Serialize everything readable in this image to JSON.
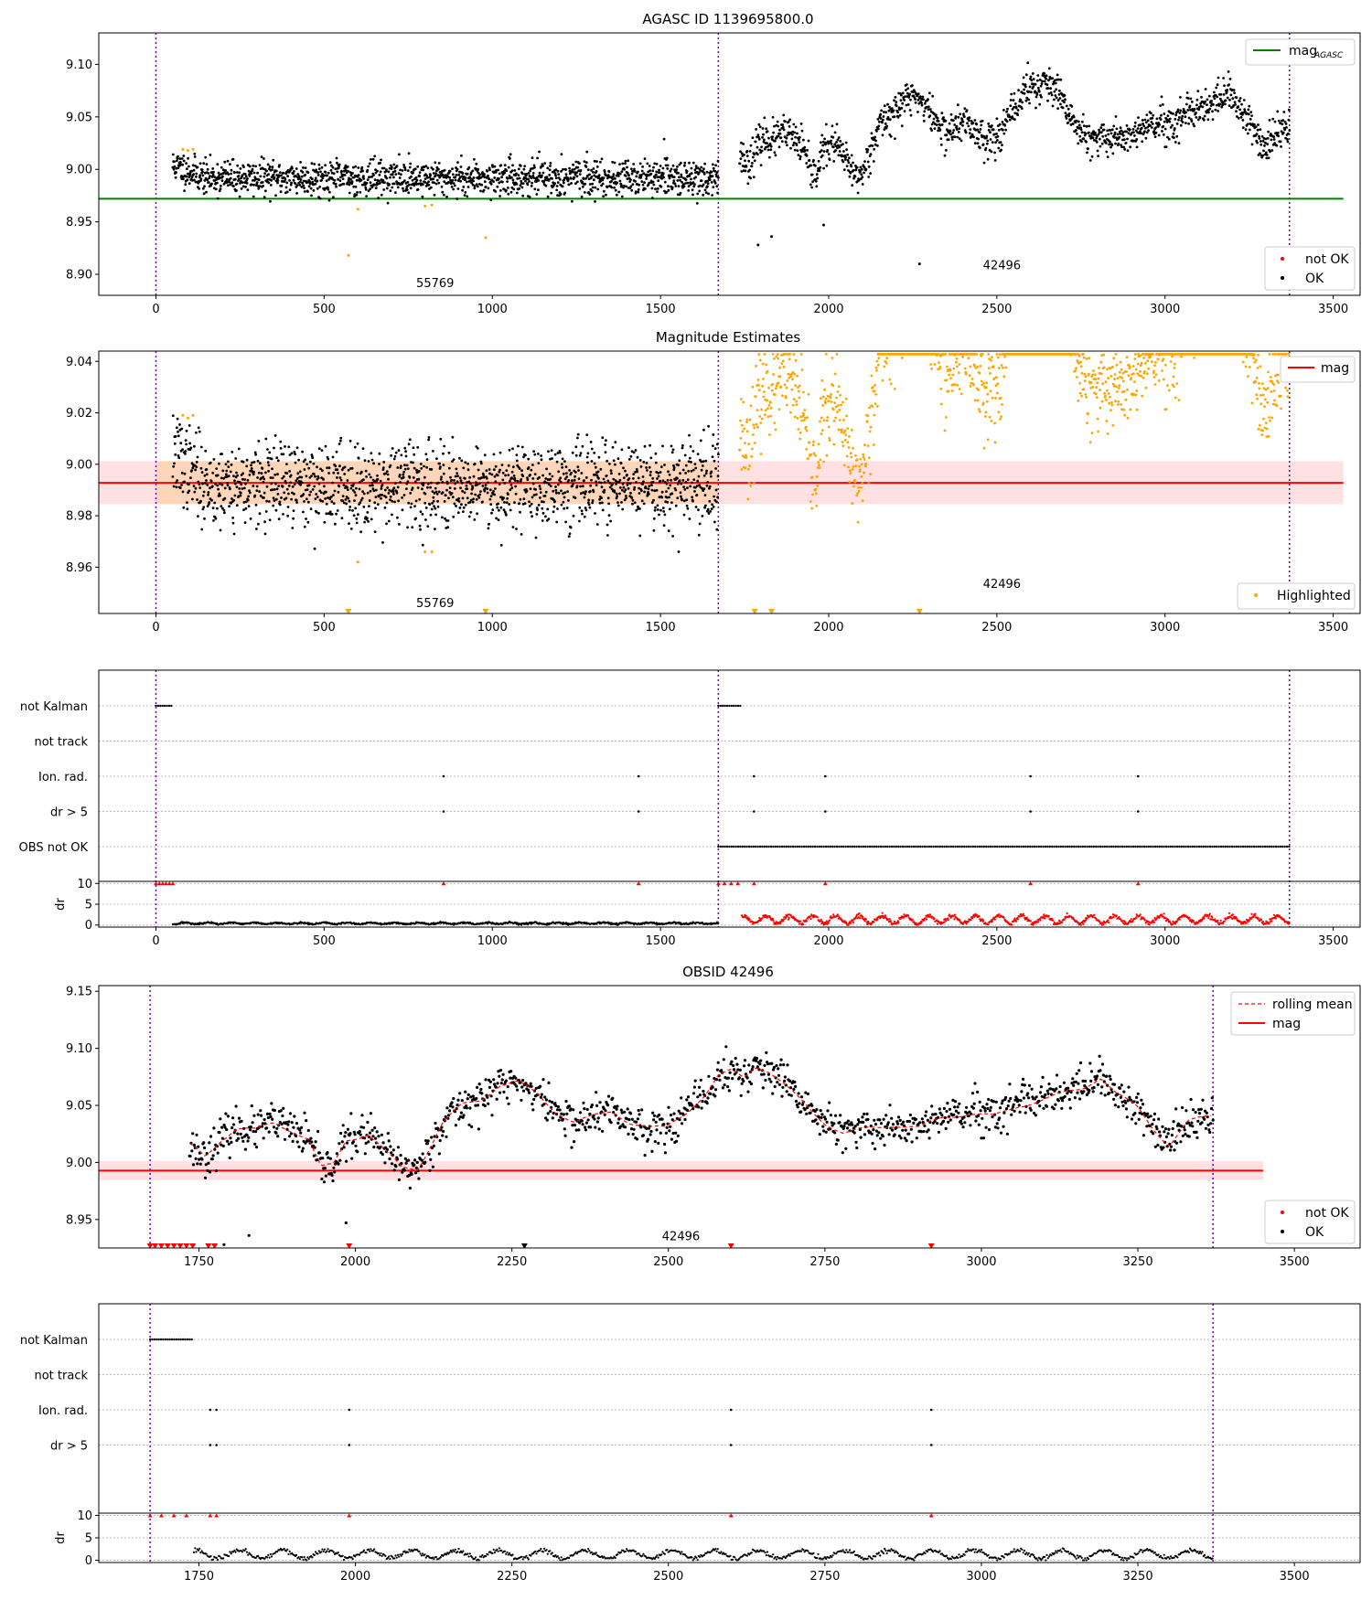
{
  "figure": {
    "panels": [
      {
        "id": "agasc",
        "title": "AGASC ID 1139695800.0",
        "legend_lines": [
          {
            "label": "mag",
            "sub": "AGASC",
            "color": "#008000",
            "style": "solid"
          }
        ],
        "legend_markers": [
          {
            "label": "not OK",
            "color": "#ff0000"
          },
          {
            "label": "OK",
            "color": "#000000"
          }
        ],
        "obsid_labels": [
          "55769",
          "42496"
        ]
      },
      {
        "id": "estimates",
        "title": "Magnitude Estimates",
        "legend_lines": [
          {
            "label": "mag",
            "color": "#ff0000",
            "style": "solid"
          }
        ],
        "legend_markers": [
          {
            "label": "Highlighted",
            "color": "#ffa500"
          }
        ],
        "obsid_labels": [
          "55769",
          "42496"
        ]
      },
      {
        "id": "flags_all",
        "flag_labels": [
          "not Kalman",
          "not track",
          "Ion. rad.",
          "dr > 5",
          "OBS not OK"
        ],
        "dr_label": "dr"
      },
      {
        "id": "obsid",
        "title": "OBSID 42496",
        "legend_lines": [
          {
            "label": "rolling mean",
            "color": "#ff0000",
            "style": "dashed"
          },
          {
            "label": "mag",
            "color": "#ff0000",
            "style": "solid"
          }
        ],
        "legend_markers": [
          {
            "label": "not OK",
            "color": "#ff0000"
          },
          {
            "label": "OK",
            "color": "#000000"
          }
        ],
        "obsid_labels": [
          "42496"
        ]
      },
      {
        "id": "flags_obsid",
        "flag_labels": [
          "not Kalman",
          "not track",
          "Ion. rad.",
          "dr > 5"
        ],
        "dr_label": "dr"
      }
    ]
  },
  "chart_data": [
    {
      "type": "scatter",
      "title": "AGASC ID 1139695800.0",
      "xlabel": "",
      "ylabel": "",
      "xlim": [
        -170,
        3580
      ],
      "ylim": [
        8.88,
        9.13
      ],
      "xticks": [
        0,
        500,
        1000,
        1500,
        2000,
        2500,
        3000,
        3500
      ],
      "yticks": [
        8.9,
        8.95,
        9.0,
        9.05,
        9.1
      ],
      "ytick_labels": [
        "8.90",
        "8.95",
        "9.00",
        "9.05",
        "9.10"
      ],
      "grid": false,
      "legend_placement": [
        "top-right",
        "bottom-right"
      ],
      "lines": [
        {
          "name": "mag_AGASC",
          "y": 8.972,
          "x": [
            -170,
            3530
          ],
          "color": "#008000"
        }
      ],
      "obsid_boundaries_x": [
        0,
        1672,
        3370
      ],
      "obsid_annotations": [
        {
          "text": "55769",
          "x": 830,
          "y": 8.888
        },
        {
          "text": "42496",
          "x": 2515,
          "y": 8.905
        }
      ],
      "series": [
        {
          "name": "OK",
          "color": "#000000",
          "generator": "obs1_stable",
          "x_range": [
            50,
            1672
          ],
          "y_mean": 8.992,
          "y_spread": 0.008,
          "points": 1500
        },
        {
          "name": "OK",
          "color": "#000000",
          "generator": "obs2_variable",
          "x_range": [
            1735,
            3370
          ],
          "points": 1300
        },
        {
          "name": "highlighted",
          "color": "#ffa500",
          "points_xy": [
            [
              80,
              9.019
            ],
            [
              95,
              9.018
            ],
            [
              110,
              9.019
            ],
            [
              572,
              8.918
            ],
            [
              600,
              8.962
            ],
            [
              800,
              8.965
            ],
            [
              820,
              8.966
            ],
            [
              980,
              8.935
            ]
          ]
        },
        {
          "name": "OK",
          "color": "#000000",
          "points_xy": [
            [
              1790,
              8.928
            ],
            [
              1830,
              8.936
            ],
            [
              1985,
              8.947
            ],
            [
              2270,
              8.91
            ]
          ]
        }
      ]
    },
    {
      "type": "scatter",
      "title": "Magnitude Estimates",
      "xlim": [
        -170,
        3580
      ],
      "ylim": [
        8.942,
        9.044
      ],
      "xticks": [
        0,
        500,
        1000,
        1500,
        2000,
        2500,
        3000,
        3500
      ],
      "yticks": [
        8.96,
        8.98,
        9.0,
        9.02,
        9.04
      ],
      "ytick_labels": [
        "8.96",
        "8.98",
        "9.00",
        "9.02",
        "9.04"
      ],
      "grid": false,
      "legend_placement": [
        "top-right",
        "bottom-right"
      ],
      "lines": [
        {
          "name": "mag",
          "y": 8.9928,
          "x": [
            -170,
            3530
          ],
          "color": "#ff0000",
          "band": [
            8.9845,
            9.0012
          ]
        }
      ],
      "highlight_band": {
        "x": [
          0,
          1672
        ],
        "y": [
          8.9845,
          9.0012
        ],
        "color": "#ffa500"
      },
      "obsid_boundaries_x": [
        0,
        1672,
        3370
      ],
      "obsid_annotations": [
        {
          "text": "55769",
          "x": 830,
          "y": 8.9445
        },
        {
          "text": "42496",
          "x": 2515,
          "y": 8.952
        }
      ],
      "clipped_markers_x": [
        572,
        980,
        1780,
        1830,
        2270
      ],
      "series": [
        {
          "name": "OK",
          "color": "#000000",
          "generator": "obs1_estimates",
          "x_range": [
            50,
            1672
          ],
          "y_mean": 8.992,
          "y_spread": 0.008,
          "points": 1500
        },
        {
          "name": "Highlighted",
          "color": "#ffa500",
          "generator": "obs2_clipped",
          "x_range": [
            1735,
            3370
          ],
          "points": 1300
        }
      ]
    },
    {
      "type": "scatter",
      "title": "",
      "xlim": [
        -170,
        3580
      ],
      "xticks": [
        0,
        500,
        1000,
        1500,
        2000,
        2500,
        3000,
        3500
      ],
      "categories": [
        "not Kalman",
        "not track",
        "Ion. rad.",
        "dr > 5",
        "OBS not OK"
      ],
      "obsid_boundaries_x": [
        0,
        1672,
        3370
      ],
      "flags": {
        "not Kalman": [
          [
            0,
            50
          ],
          [
            1672,
            1742
          ]
        ],
        "not track": [],
        "Ion. rad.": [
          855,
          1435,
          1778,
          1990,
          2600,
          2920
        ],
        "dr > 5": [
          855,
          1435,
          1778,
          1990,
          2600,
          2920
        ],
        "OBS not OK": [
          [
            1672,
            3370
          ]
        ]
      },
      "dr": {
        "ylim": [
          -0.5,
          10.5
        ],
        "yticks": [
          0,
          5,
          10
        ],
        "red_markers_x": [
          0,
          10,
          20,
          30,
          40,
          50,
          855,
          1435,
          1672,
          1690,
          1710,
          1730,
          1778,
          1990,
          2600,
          2920
        ],
        "series": [
          {
            "name": "obs1",
            "color": "#000000",
            "x_range": [
              50,
              1672
            ],
            "y_mean": 0.4
          },
          {
            "name": "obs2",
            "color": "#ff0000",
            "x_range": [
              1742,
              3370
            ],
            "y_mean": 1.3
          }
        ]
      }
    },
    {
      "type": "line",
      "title": "OBSID 42496",
      "xlim": [
        1590,
        3605
      ],
      "ylim": [
        8.925,
        9.155
      ],
      "xticks": [
        1750,
        2000,
        2250,
        2500,
        2750,
        3000,
        3250,
        3500
      ],
      "yticks": [
        8.95,
        9.0,
        9.05,
        9.1,
        9.15
      ],
      "ytick_labels": [
        "8.95",
        "9.00",
        "9.05",
        "9.10",
        "9.15"
      ],
      "grid": false,
      "legend_placement": [
        "top-right",
        "bottom-right"
      ],
      "lines": [
        {
          "name": "mag",
          "y": 8.9928,
          "x": [
            1590,
            3450
          ],
          "color": "#ff0000",
          "band": [
            8.9845,
            9.0012
          ]
        }
      ],
      "obsid_boundaries_x": [
        1672,
        3370
      ],
      "obsid_annotations": [
        {
          "text": "42496",
          "x": 2520,
          "y": 8.932
        }
      ],
      "series": [
        {
          "name": "OK",
          "color": "#000000",
          "generator": "obs2_variable",
          "x_range": [
            1735,
            3370
          ],
          "points": 1300
        },
        {
          "name": "rolling mean",
          "color": "#ff0000",
          "style": "dashed",
          "generator": "obs2_profile",
          "x_range": [
            1735,
            3370
          ]
        },
        {
          "name": "not OK",
          "color": "#ff0000",
          "clipped_markers_x": [
            1672,
            1680,
            1690,
            1700,
            1710,
            1720,
            1730,
            1740,
            1765,
            1775,
            1990,
            2600,
            2920
          ]
        },
        {
          "name": "OK",
          "color": "#000000",
          "points_xy": [
            [
              1790,
              8.928
            ],
            [
              1830,
              8.936
            ],
            [
              1985,
              8.947
            ]
          ],
          "clipped_markers_x": [
            2270
          ]
        }
      ]
    },
    {
      "type": "scatter",
      "title": "",
      "xlim": [
        1590,
        3605
      ],
      "xticks": [
        1750,
        2000,
        2250,
        2500,
        2750,
        3000,
        3250,
        3500
      ],
      "categories": [
        "not Kalman",
        "not track",
        "Ion. rad.",
        "dr > 5"
      ],
      "obsid_boundaries_x": [
        1672,
        3370
      ],
      "flags": {
        "not Kalman": [
          [
            1672,
            1742
          ]
        ],
        "not track": [],
        "Ion. rad.": [
          1768,
          1778,
          1990,
          2600,
          2920
        ],
        "dr > 5": [
          1768,
          1778,
          1990,
          2600,
          2920
        ]
      },
      "dr": {
        "ylim": [
          -0.5,
          10.5
        ],
        "yticks": [
          0,
          5,
          10
        ],
        "red_markers_x": [
          1672,
          1690,
          1710,
          1730,
          1768,
          1778,
          1990,
          2600,
          2920
        ],
        "series": [
          {
            "name": "obs2",
            "color": "#000000",
            "x_range": [
              1742,
              3370
            ],
            "y_mean": 1.3
          }
        ]
      }
    }
  ]
}
